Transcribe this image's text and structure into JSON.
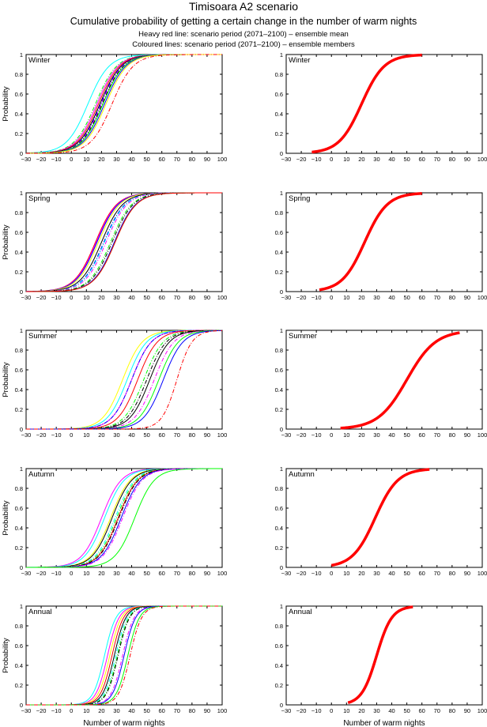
{
  "header": {
    "title": "Timisoara A2 scenario",
    "subtitle": "Cumulative probability of getting a certain change in the number of warm nights",
    "note_mean": "Heavy red line: scenario period (2071–2100) – ensemble mean",
    "note_members": "Coloured lines: scenario period (2071–2100) – ensemble members"
  },
  "chart_data": {
    "type": "line",
    "layout": "5 rows x 2 columns; left column = ensemble members, right column = ensemble mean",
    "xlabel": "Number of warm nights",
    "ylabel": "Probability",
    "xlim": [
      -30,
      100
    ],
    "ylim": [
      0,
      1
    ],
    "xticks": [
      -30,
      -20,
      -10,
      0,
      10,
      20,
      30,
      40,
      50,
      60,
      70,
      80,
      90,
      100
    ],
    "yticks": [
      0,
      0.2,
      0.4,
      0.6,
      0.8,
      1
    ],
    "ytick_labels": [
      "0",
      "0.2",
      "0.4",
      "0.6",
      "0.8",
      "1"
    ],
    "curve_model": "logistic CDF; median = x at probability 0.5, spread = scale in warm nights",
    "mean_style": {
      "color": "#ff0000",
      "weight": "heavy"
    },
    "panels": [
      {
        "season": "Winter",
        "mean": {
          "median": 20,
          "spread": 7.5,
          "x_start": -13,
          "x_end": 60
        },
        "members": [
          {
            "color": "#00ffff",
            "dash": "solid",
            "median": 11,
            "spread": 7.0
          },
          {
            "color": "#00ff00",
            "dash": "dashdot",
            "median": 16,
            "spread": 7.0
          },
          {
            "color": "#ff00ff",
            "dash": "solid",
            "median": 17,
            "spread": 7.0
          },
          {
            "color": "#ff0000",
            "dash": "solid",
            "median": 18,
            "spread": 7.0
          },
          {
            "color": "#000000",
            "dash": "solid",
            "median": 19,
            "spread": 7.0
          },
          {
            "color": "#0000ff",
            "dash": "dashdot",
            "median": 19.5,
            "spread": 7.0
          },
          {
            "color": "#ff00ff",
            "dash": "dashdot",
            "median": 20,
            "spread": 7.0
          },
          {
            "color": "#000000",
            "dash": "dashdot",
            "median": 20.5,
            "spread": 7.0
          },
          {
            "color": "#00ff00",
            "dash": "solid",
            "median": 21,
            "spread": 7.0
          },
          {
            "color": "#0000ff",
            "dash": "solid",
            "median": 22,
            "spread": 7.0
          },
          {
            "color": "#ffff00",
            "dash": "solid",
            "median": 23,
            "spread": 7.0
          },
          {
            "color": "#ff0000",
            "dash": "dashdot",
            "median": 27,
            "spread": 7.0
          }
        ]
      },
      {
        "season": "Spring",
        "mean": {
          "median": 22,
          "spread": 7.5,
          "x_start": -8,
          "x_end": 60
        },
        "members": [
          {
            "color": "#ff0000",
            "dash": "solid",
            "median": 16,
            "spread": 7.0
          },
          {
            "color": "#ff00ff",
            "dash": "solid",
            "median": 16.5,
            "spread": 7.0
          },
          {
            "color": "#0000ff",
            "dash": "solid",
            "median": 17,
            "spread": 7.0
          },
          {
            "color": "#ffff00",
            "dash": "solid",
            "median": 18,
            "spread": 7.0
          },
          {
            "color": "#000000",
            "dash": "solid",
            "median": 20,
            "spread": 7.0
          },
          {
            "color": "#0000ff",
            "dash": "dashdot",
            "median": 21.5,
            "spread": 7.0
          },
          {
            "color": "#00ffff",
            "dash": "dashdot",
            "median": 22,
            "spread": 7.0
          },
          {
            "color": "#ff00ff",
            "dash": "dashdot",
            "median": 23,
            "spread": 7.0
          },
          {
            "color": "#00ff00",
            "dash": "dashdot",
            "median": 26,
            "spread": 7.0
          },
          {
            "color": "#000000",
            "dash": "dashdot",
            "median": 27,
            "spread": 7.0
          },
          {
            "color": "#0000ff",
            "dash": "solid",
            "median": 28.5,
            "spread": 7.0
          },
          {
            "color": "#00ff00",
            "dash": "solid",
            "median": 29,
            "spread": 7.0
          },
          {
            "color": "#ff0000",
            "dash": "solid",
            "median": 29,
            "spread": 7.0
          }
        ]
      },
      {
        "season": "Summer",
        "mean": {
          "median": 50,
          "spread": 9.5,
          "x_start": 6,
          "x_end": 85
        },
        "members": [
          {
            "color": "#ffff00",
            "dash": "solid",
            "median": 34,
            "spread": 6.5
          },
          {
            "color": "#00ffff",
            "dash": "solid",
            "median": 37,
            "spread": 6.5
          },
          {
            "color": "#ff00ff",
            "dash": "solid",
            "median": 40,
            "spread": 6.5
          },
          {
            "color": "#0000ff",
            "dash": "dashdot",
            "median": 40,
            "spread": 6.5
          },
          {
            "color": "#ff0000",
            "dash": "solid",
            "median": 44,
            "spread": 6.5
          },
          {
            "color": "#00ff00",
            "dash": "dashdot",
            "median": 48,
            "spread": 6.5
          },
          {
            "color": "#000000",
            "dash": "dashdot",
            "median": 50,
            "spread": 6.5
          },
          {
            "color": "#000000",
            "dash": "solid",
            "median": 52,
            "spread": 6.5
          },
          {
            "color": "#ff00ff",
            "dash": "dashdot",
            "median": 55,
            "spread": 6.5
          },
          {
            "color": "#00ff00",
            "dash": "solid",
            "median": 58,
            "spread": 6.5
          },
          {
            "color": "#0000ff",
            "dash": "solid",
            "median": 61,
            "spread": 6.5
          },
          {
            "color": "#ff0000",
            "dash": "dashdot",
            "median": 70,
            "spread": 5.0
          }
        ]
      },
      {
        "season": "Autumn",
        "mean": {
          "median": 29,
          "spread": 7.5,
          "x_start": 0,
          "x_end": 65
        },
        "members": [
          {
            "color": "#ff00ff",
            "dash": "solid",
            "median": 20,
            "spread": 6.5
          },
          {
            "color": "#00ffff",
            "dash": "solid",
            "median": 22,
            "spread": 6.5
          },
          {
            "color": "#ffff00",
            "dash": "solid",
            "median": 26,
            "spread": 6.5
          },
          {
            "color": "#000000",
            "dash": "solid",
            "median": 27,
            "spread": 6.5
          },
          {
            "color": "#00ffff",
            "dash": "dashdot",
            "median": 29,
            "spread": 6.5
          },
          {
            "color": "#00ff00",
            "dash": "dashdot",
            "median": 30,
            "spread": 6.5
          },
          {
            "color": "#ff0000",
            "dash": "solid",
            "median": 31,
            "spread": 6.5
          },
          {
            "color": "#000000",
            "dash": "dashdot",
            "median": 31.5,
            "spread": 6.5
          },
          {
            "color": "#0000ff",
            "dash": "solid",
            "median": 33,
            "spread": 6.5
          },
          {
            "color": "#ff00ff",
            "dash": "dashdot",
            "median": 34,
            "spread": 6.5
          },
          {
            "color": "#00ff00",
            "dash": "solid",
            "median": 42,
            "spread": 6.5
          }
        ]
      },
      {
        "season": "Annual",
        "mean": {
          "median": 30,
          "spread": 5.0,
          "x_start": 11,
          "x_end": 54
        },
        "members": [
          {
            "color": "#00ffff",
            "dash": "solid",
            "median": 22,
            "spread": 3.8
          },
          {
            "color": "#ff00ff",
            "dash": "solid",
            "median": 24,
            "spread": 3.8
          },
          {
            "color": "#ffff00",
            "dash": "solid",
            "median": 25.5,
            "spread": 3.8
          },
          {
            "color": "#ff0000",
            "dash": "solid",
            "median": 27,
            "spread": 3.8
          },
          {
            "color": "#000000",
            "dash": "solid",
            "median": 28.5,
            "spread": 3.8
          },
          {
            "color": "#00ffff",
            "dash": "dashdot",
            "median": 29.5,
            "spread": 3.8
          },
          {
            "color": "#00ff00",
            "dash": "dashdot",
            "median": 30.5,
            "spread": 3.8
          },
          {
            "color": "#000000",
            "dash": "dashdot",
            "median": 31,
            "spread": 3.8
          },
          {
            "color": "#ff00ff",
            "dash": "dashdot",
            "median": 34,
            "spread": 3.8
          },
          {
            "color": "#0000ff",
            "dash": "solid",
            "median": 35,
            "spread": 3.8
          },
          {
            "color": "#00ff00",
            "dash": "solid",
            "median": 37.5,
            "spread": 3.8
          },
          {
            "color": "#ff0000",
            "dash": "dashdot",
            "median": 39,
            "spread": 3.8
          }
        ]
      }
    ]
  }
}
